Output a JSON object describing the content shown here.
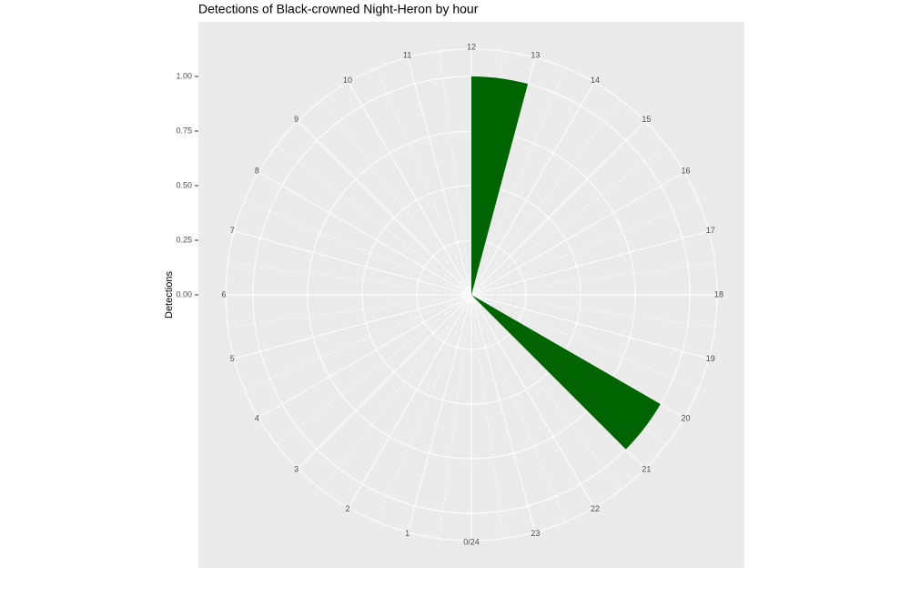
{
  "chart_data": {
    "type": "polar-bar",
    "title": "Detections of Black-crowned Night-Heron by hour",
    "y_label": "Detections",
    "x": [
      12,
      20
    ],
    "values": [
      1,
      1
    ],
    "bar_width": 1,
    "color": "#006400",
    "xlim": [
      0,
      24
    ],
    "xticks": [
      {
        "value": 0,
        "label": "0/24"
      },
      1,
      2,
      3,
      4,
      5,
      6,
      7,
      8,
      9,
      10,
      11,
      12,
      13,
      14,
      15,
      16,
      17,
      18,
      19,
      20,
      21,
      22,
      23
    ],
    "ylim": [
      0,
      1.125
    ],
    "yticks": [
      {
        "value": 0,
        "label": "0.00"
      },
      {
        "value": 0.25,
        "label": "0.25"
      },
      {
        "value": 0.5,
        "label": "0.50"
      },
      {
        "value": 0.75,
        "label": "0.75"
      },
      {
        "value": 1,
        "label": "1.00"
      }
    ],
    "grid": true
  }
}
